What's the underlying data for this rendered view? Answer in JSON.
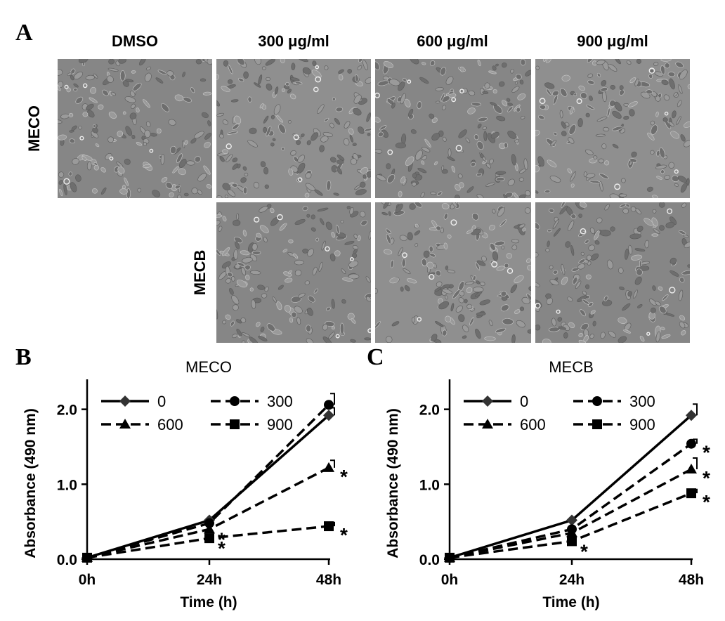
{
  "panel_a": {
    "letter": "A",
    "columns": [
      "DMSO",
      "300 μg/ml",
      "600 μg/ml",
      "900 μg/ml"
    ],
    "rows": [
      "MECO",
      "MECB"
    ]
  },
  "chart_data": [
    {
      "panel": "B",
      "type": "line",
      "title": "MECO",
      "xlabel": "Time (h)",
      "ylabel": "Absorbance (490 nm)",
      "categories": [
        "0h",
        "24h",
        "48h"
      ],
      "ylim": [
        0,
        2.4
      ],
      "yticks": [
        "0.0",
        "1.0",
        "2.0"
      ],
      "series": [
        {
          "name": "0",
          "values": [
            0.02,
            0.52,
            1.92
          ],
          "errors": [
            0,
            0,
            0.1
          ],
          "marker": "diamond",
          "dash": "solid",
          "sig": [
            "",
            "",
            ""
          ]
        },
        {
          "name": "300",
          "values": [
            0.02,
            0.48,
            2.06
          ],
          "errors": [
            0,
            0,
            0.15
          ],
          "marker": "circle",
          "dash": "dashed",
          "sig": [
            "",
            "",
            ""
          ]
        },
        {
          "name": "600",
          "values": [
            0.02,
            0.4,
            1.22
          ],
          "errors": [
            0,
            0,
            0.1
          ],
          "marker": "triangle",
          "dash": "dashed",
          "sig": [
            "",
            "*",
            "*"
          ]
        },
        {
          "name": "900",
          "values": [
            0.02,
            0.28,
            0.44
          ],
          "errors": [
            0,
            0,
            0.05
          ],
          "marker": "square",
          "dash": "dashed",
          "sig": [
            "",
            "*",
            "*"
          ]
        }
      ],
      "legend_placement": "top"
    },
    {
      "panel": "C",
      "type": "line",
      "title": "MECB",
      "xlabel": "Time (h)",
      "ylabel": "Absorbance (490 nm)",
      "categories": [
        "0h",
        "24h",
        "48h"
      ],
      "ylim": [
        0,
        2.4
      ],
      "yticks": [
        "0.0",
        "1.0",
        "2.0"
      ],
      "series": [
        {
          "name": "0",
          "values": [
            0.02,
            0.52,
            1.92
          ],
          "errors": [
            0,
            0,
            0.15
          ],
          "marker": "diamond",
          "dash": "solid",
          "sig": [
            "",
            "",
            ""
          ]
        },
        {
          "name": "300",
          "values": [
            0.02,
            0.4,
            1.54
          ],
          "errors": [
            0,
            0,
            0.06
          ],
          "marker": "circle",
          "dash": "dashed",
          "sig": [
            "",
            "",
            "*"
          ]
        },
        {
          "name": "600",
          "values": [
            0.02,
            0.35,
            1.2
          ],
          "errors": [
            0,
            0,
            0.15
          ],
          "marker": "triangle",
          "dash": "dashed",
          "sig": [
            "",
            "",
            "*"
          ]
        },
        {
          "name": "900",
          "values": [
            0.02,
            0.24,
            0.88
          ],
          "errors": [
            0,
            0,
            0.05
          ],
          "marker": "square",
          "dash": "dashed",
          "sig": [
            "",
            "*",
            "*"
          ]
        }
      ],
      "legend_placement": "top"
    }
  ]
}
